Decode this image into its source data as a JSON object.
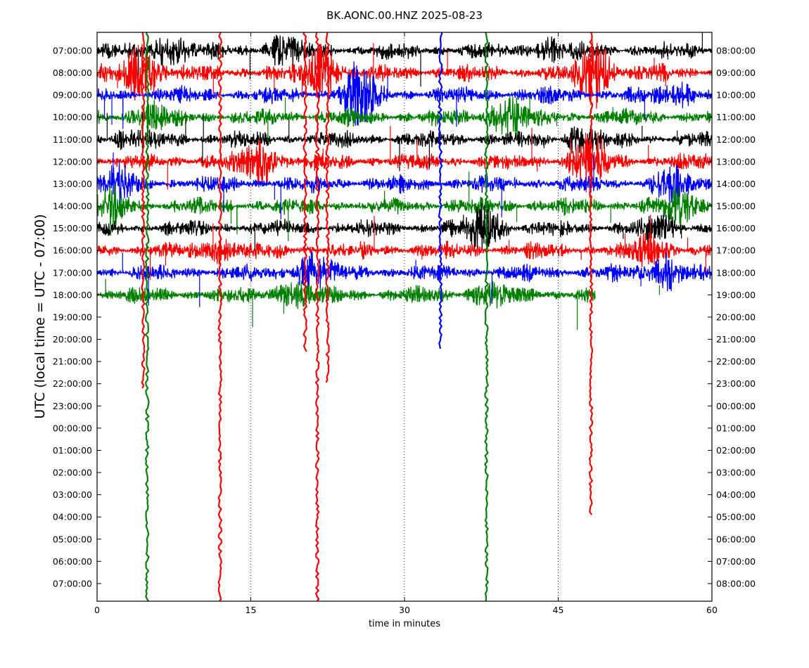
{
  "chart_data": {
    "type": "line",
    "subtype": "seismic-helicorder",
    "title": "BK.AONC.00.HNZ 2025-08-23",
    "xlabel": "time in minutes",
    "ylabel": "UTC (local time = UTC - 07:00)",
    "xlim": [
      0,
      60
    ],
    "xticks": [
      0,
      15,
      30,
      45,
      60
    ],
    "grid": "vertical dotted lines at 15, 30, 45",
    "left_tick_labels": [
      "07:00:00",
      "08:00:00",
      "09:00:00",
      "10:00:00",
      "11:00:00",
      "12:00:00",
      "13:00:00",
      "14:00:00",
      "15:00:00",
      "16:00:00",
      "17:00:00",
      "18:00:00",
      "19:00:00",
      "20:00:00",
      "21:00:00",
      "22:00:00",
      "23:00:00",
      "00:00:00",
      "01:00:00",
      "02:00:00",
      "03:00:00",
      "04:00:00",
      "05:00:00",
      "06:00:00",
      "07:00:00"
    ],
    "right_tick_labels": [
      "08:00:00",
      "09:00:00",
      "10:00:00",
      "11:00:00",
      "12:00:00",
      "13:00:00",
      "14:00:00",
      "15:00:00",
      "16:00:00",
      "17:00:00",
      "18:00:00",
      "19:00:00",
      "20:00:00",
      "21:00:00",
      "22:00:00",
      "23:00:00",
      "00:00:00",
      "01:00:00",
      "02:00:00",
      "03:00:00",
      "04:00:00",
      "05:00:00",
      "06:00:00",
      "07:00:00",
      "08:00:00"
    ],
    "trace_colors": [
      "#000000",
      "#ff0000",
      "#0000ff",
      "#008000"
    ],
    "traces_with_data": 12,
    "spikes": [
      {
        "minute": 4.9,
        "color": "#008000",
        "extends_to_row": 24.9
      },
      {
        "minute": 12.0,
        "color": "#ff0000",
        "extends_to_row": 24.9
      },
      {
        "minute": 21.5,
        "color": "#ff0000",
        "extends_to_row": 24.9
      },
      {
        "minute": 38.0,
        "color": "#008000",
        "extends_to_row": 24.9
      },
      {
        "minute": 48.2,
        "color": "#ff0000",
        "extends_to_row": 20.9
      },
      {
        "minute": 4.5,
        "color": "#ff0000",
        "extends_to_row": 15.2
      },
      {
        "minute": 22.5,
        "color": "#ff0000",
        "extends_to_row": 15.0
      },
      {
        "minute": 20.3,
        "color": "#ff0000",
        "extends_to_row": 13.6
      },
      {
        "minute": 33.5,
        "color": "#0000ff",
        "extends_to_row": 13.5
      }
    ]
  }
}
